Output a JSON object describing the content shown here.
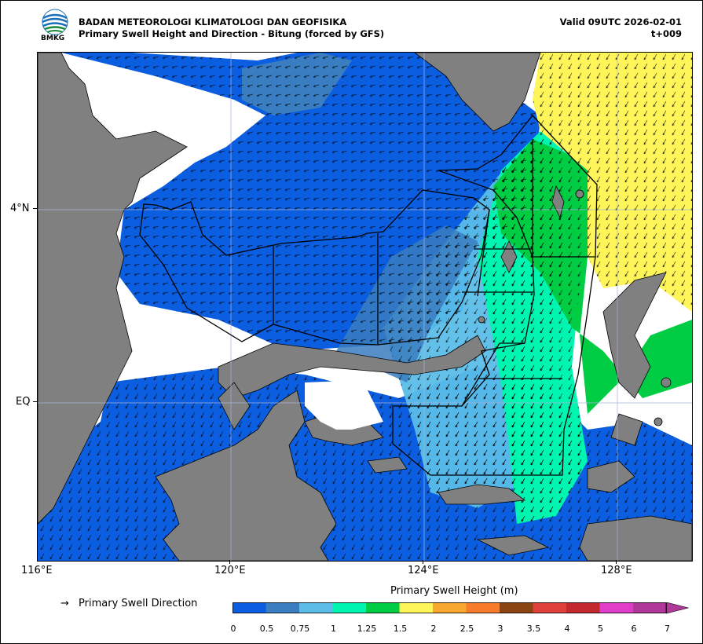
{
  "header": {
    "agency": "BADAN METEOROLOGI KLIMATOLOGI DAN GEOFISIKA",
    "product": "Primary Swell Height and Direction - Bitung (forced by GFS)",
    "valid": "Valid 09UTC 2026-02-01",
    "lead": "t+009",
    "logo_text": "BMKG"
  },
  "axes": {
    "lon_labels": [
      "116°E",
      "120°E",
      "124°E",
      "128°E"
    ],
    "lat_labels": [
      "4°N",
      "EQ"
    ]
  },
  "legend": {
    "direction_arrow": "→",
    "direction_label": "Primary Swell Direction",
    "colorbar_title": "Primary Swell Height (m)",
    "tick_labels": [
      "0",
      "0.5",
      "0.75",
      "1",
      "1.25",
      "1.5",
      "2",
      "2.5",
      "3",
      "3.5",
      "4",
      "5",
      "6",
      "7"
    ],
    "colors": [
      "#0b5ee0",
      "#3a7dc0",
      "#5bbde8",
      "#00f5b0",
      "#00cc44",
      "#fdf55a",
      "#f9a82f",
      "#f97b2c",
      "#8b4513",
      "#e0403a",
      "#c22a30",
      "#e03ec8",
      "#b03898"
    ]
  },
  "map": {
    "land_color": "#808080",
    "sea_masked_color": "#ffffff"
  }
}
